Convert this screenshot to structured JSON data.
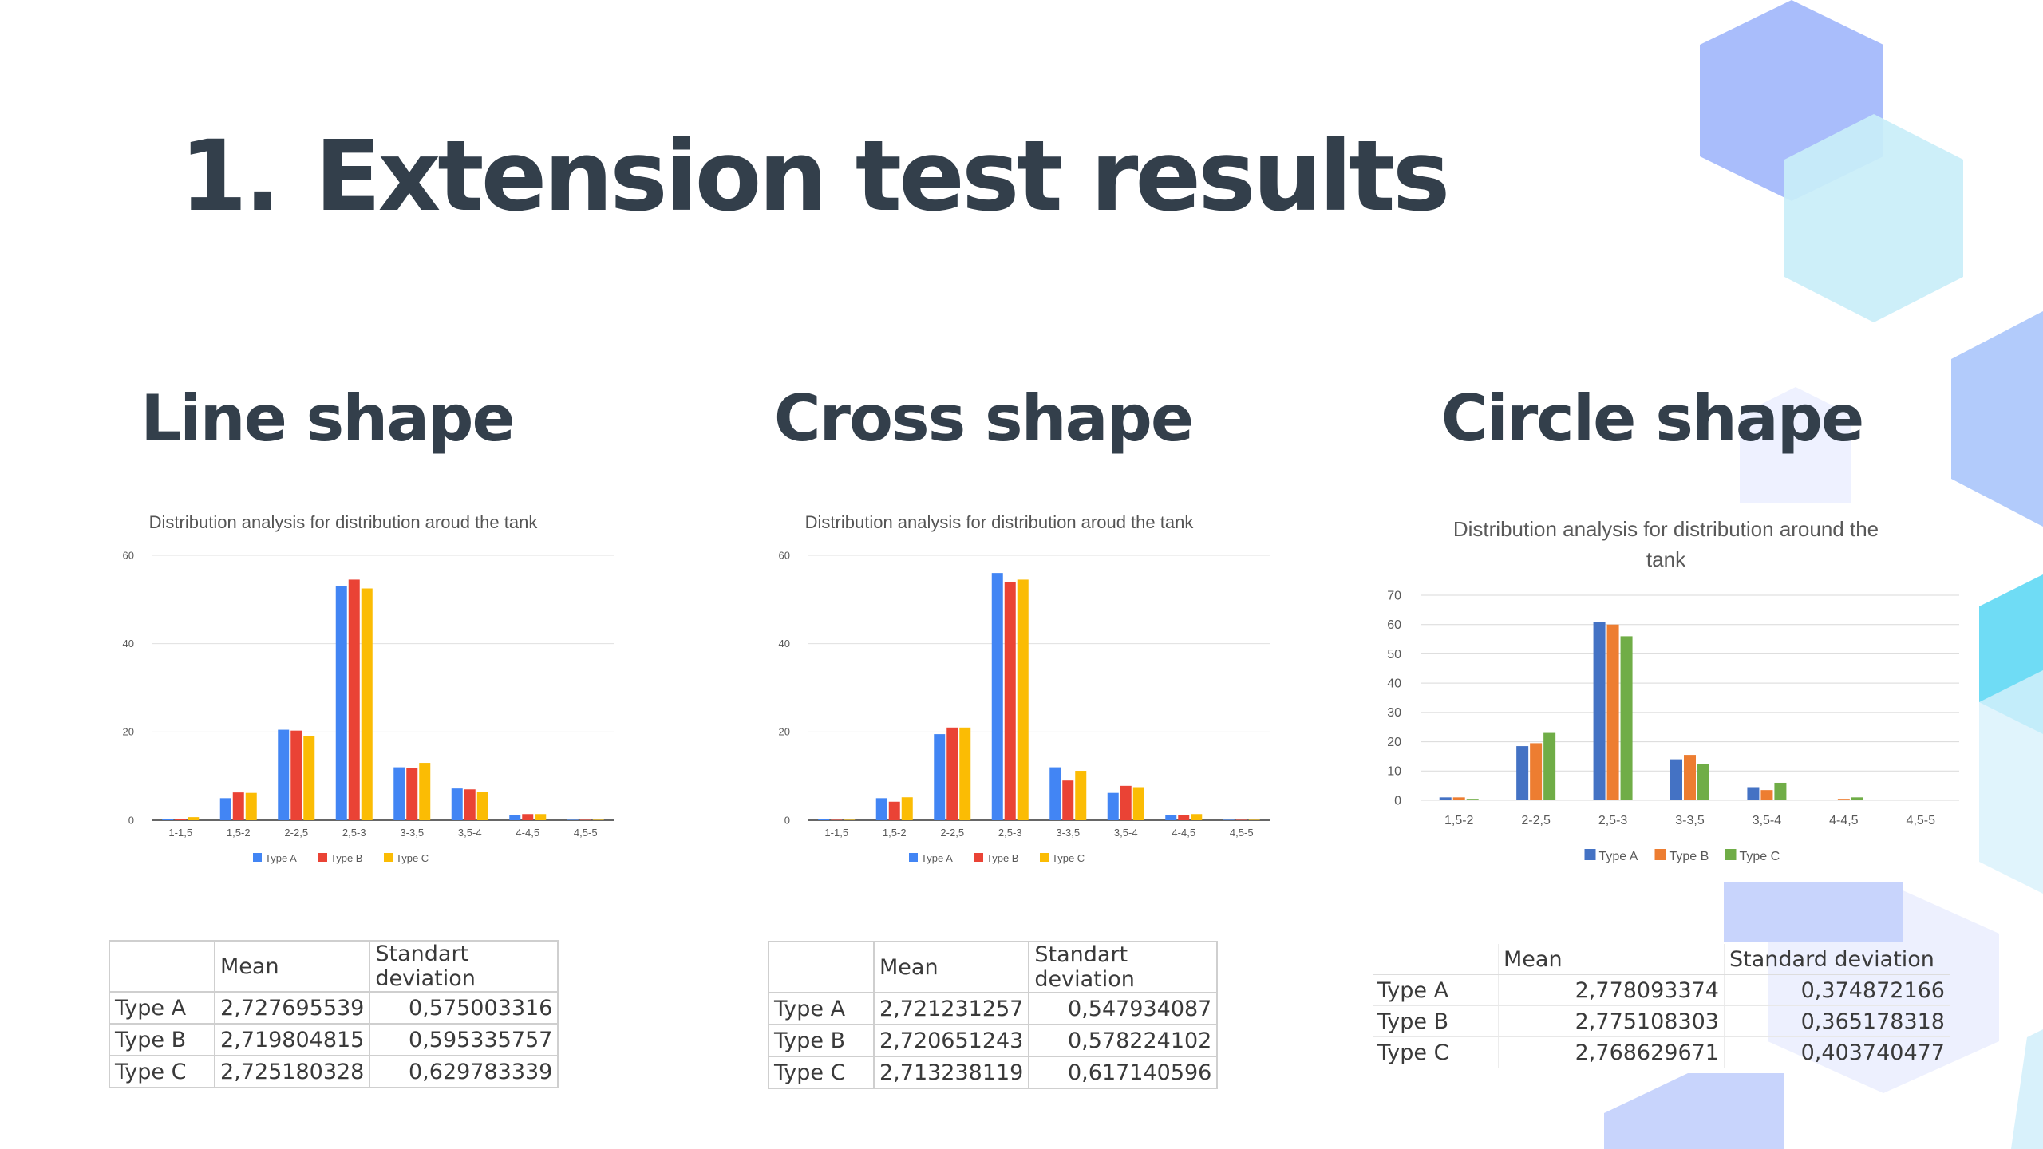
{
  "page": {
    "title_number": "1.",
    "title_text": "Extension test results"
  },
  "colors": {
    "title": "#333f4b",
    "google_type_a": "#4285f4",
    "google_type_b": "#ea4335",
    "google_type_c": "#fbbc04",
    "excel_type_a": "#4472c4",
    "excel_type_b": "#ed7d31",
    "excel_type_c": "#70ad47",
    "hexagon_blue": "#a9bdfb",
    "hexagon_light": "#c9eef9",
    "hexagon_cyan": "#6fdcf5"
  },
  "sections": [
    {
      "name": "Line shape",
      "table": {
        "headers": [
          "",
          "Mean",
          "Standart deviation"
        ],
        "rows": [
          [
            "Type A",
            "2,727695539",
            "0,575003316"
          ],
          [
            "Type B",
            "2,719804815",
            "0,595335757"
          ],
          [
            "Type C",
            "2,725180328",
            "0,629783339"
          ]
        ]
      }
    },
    {
      "name": "Cross shape",
      "table": {
        "headers": [
          "",
          "Mean",
          "Standart deviation"
        ],
        "rows": [
          [
            "Type A",
            "2,721231257",
            "0,547934087"
          ],
          [
            "Type B",
            "2,720651243",
            "0,578224102"
          ],
          [
            "Type C",
            "2,713238119",
            "0,617140596"
          ]
        ]
      }
    },
    {
      "name": "Circle shape",
      "table": {
        "headers": [
          "",
          "Mean",
          "Standard deviation"
        ],
        "rows": [
          [
            "Type A",
            "2,778093374",
            "0,374872166"
          ],
          [
            "Type B",
            "2,775108303",
            "0,365178318"
          ],
          [
            "Type C",
            "2,768629671",
            "0,403740477"
          ]
        ]
      }
    }
  ],
  "chart_data": [
    {
      "type": "bar",
      "style": "google",
      "title": "Distribution analysis for distribution aroud the tank",
      "categories": [
        "1-1,5",
        "1,5-2",
        "2-2,5",
        "2,5-3",
        "3-3,5",
        "3,5-4",
        "4-4,5",
        "4,5-5"
      ],
      "series": [
        {
          "name": "Type A",
          "values": [
            0.3,
            5,
            20.5,
            53,
            12,
            7.2,
            1.2,
            0.1
          ]
        },
        {
          "name": "Type B",
          "values": [
            0.3,
            6.3,
            20.3,
            54.5,
            11.8,
            7.0,
            1.4,
            0.1
          ]
        },
        {
          "name": "Type C",
          "values": [
            0.7,
            6.2,
            19,
            52.5,
            13,
            6.4,
            1.4,
            0.1
          ]
        }
      ],
      "yticks": [
        0,
        20,
        40,
        60
      ],
      "ylim": [
        0,
        60
      ],
      "grid": true,
      "legend": "bottom"
    },
    {
      "type": "bar",
      "style": "google",
      "title": "Distribution analysis for distribution aroud the tank",
      "categories": [
        "1-1,5",
        "1,5-2",
        "2-2,5",
        "2,5-3",
        "3-3,5",
        "3,5-4",
        "4-4,5",
        "4,5-5"
      ],
      "series": [
        {
          "name": "Type A",
          "values": [
            0.3,
            5,
            19.5,
            56,
            12,
            6.2,
            1.2,
            0.1
          ]
        },
        {
          "name": "Type B",
          "values": [
            0.1,
            4.2,
            21,
            54,
            9,
            7.8,
            1.2,
            0.1
          ]
        },
        {
          "name": "Type C",
          "values": [
            0.1,
            5.2,
            21,
            54.5,
            11.2,
            7.5,
            1.4,
            0.1
          ]
        }
      ],
      "yticks": [
        0,
        20,
        40,
        60
      ],
      "ylim": [
        0,
        60
      ],
      "grid": true,
      "legend": "bottom"
    },
    {
      "type": "bar",
      "style": "excel",
      "title": "Distribution analysis for distribution around the tank",
      "categories": [
        "1,5-2",
        "2-2,5",
        "2,5-3",
        "3-3,5",
        "3,5-4",
        "4-4,5",
        "4,5-5"
      ],
      "series": [
        {
          "name": "Type A",
          "values": [
            1,
            18.5,
            61,
            14,
            4.5,
            0,
            0
          ]
        },
        {
          "name": "Type B",
          "values": [
            1,
            19.5,
            60,
            15.5,
            3.5,
            0.5,
            0
          ]
        },
        {
          "name": "Type C",
          "values": [
            0.5,
            23,
            56,
            12.5,
            6,
            1,
            0
          ]
        }
      ],
      "yticks": [
        0,
        10,
        20,
        30,
        40,
        50,
        60,
        70
      ],
      "ylim": [
        0,
        70
      ],
      "grid": true,
      "legend": "bottom"
    }
  ]
}
